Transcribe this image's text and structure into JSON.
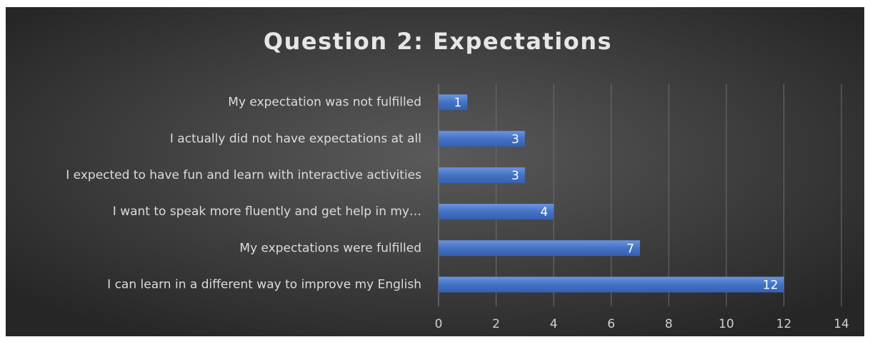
{
  "chart_data": {
    "type": "bar",
    "orientation": "horizontal",
    "title": "Question 2: Expectations",
    "categories": [
      "My expectation was not fulfilled",
      "I actually did not have expectations at all",
      "I expected to have fun and learn with interactive activities",
      "I want to speak more fluently and get help in my…",
      "My expectations were fulfilled",
      "I can learn in a different way to improve my English"
    ],
    "values": [
      1,
      3,
      3,
      4,
      7,
      12
    ],
    "color": "#4472c4",
    "xlim": [
      0,
      14
    ],
    "xticks": [
      0,
      2,
      4,
      6,
      8,
      10,
      12,
      14
    ],
    "grid": true
  }
}
